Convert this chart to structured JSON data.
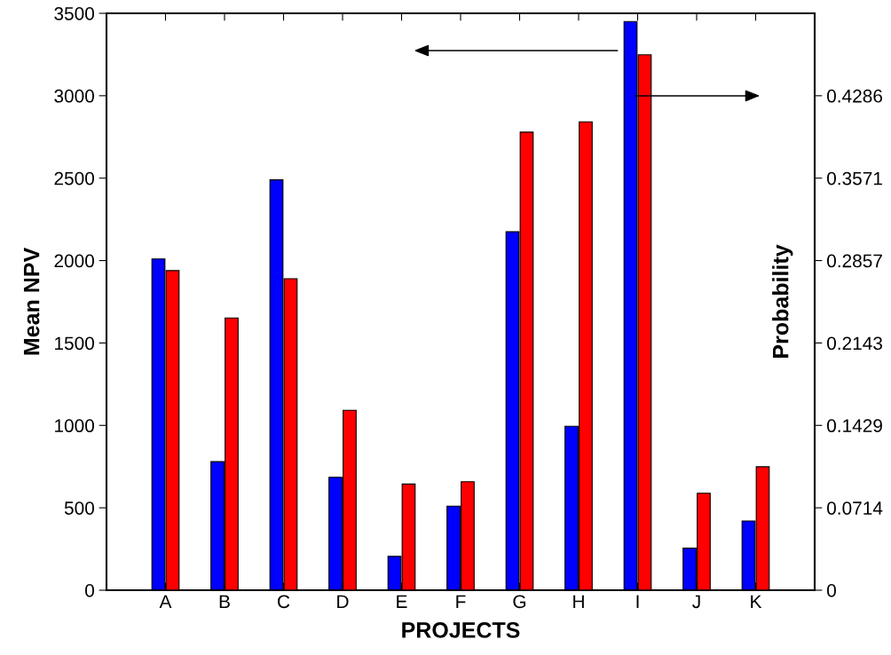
{
  "chart_data": {
    "type": "bar",
    "xlabel": "PROJECTS",
    "ylabel": "Mean NPV",
    "y2label": "Probability",
    "categories": [
      "A",
      "B",
      "C",
      "D",
      "E",
      "F",
      "G",
      "H",
      "I",
      "J",
      "K"
    ],
    "series": [
      {
        "color": "#0000ff",
        "values": [
          2010,
          780,
          2490,
          685,
          205,
          510,
          2175,
          995,
          3450,
          255,
          420
        ]
      },
      {
        "color": "#ff0000",
        "axis": "y2",
        "values": [
          0.277,
          0.236,
          0.27,
          0.156,
          0.092,
          0.094,
          0.397,
          0.406,
          0.464,
          0.084,
          0.107
        ]
      }
    ],
    "ylim": [
      0,
      3500
    ],
    "yticks": [
      0,
      500,
      1000,
      1500,
      2000,
      2500,
      3000,
      3500
    ],
    "y2lim": [
      0,
      0.5
    ],
    "y2ticks": [
      {
        "value": 0,
        "label": "0"
      },
      {
        "value": 0.07143,
        "label": "0.0714"
      },
      {
        "value": 0.14286,
        "label": "0.1429"
      },
      {
        "value": 0.21429,
        "label": "0.2143"
      },
      {
        "value": 0.28571,
        "label": "0.2857"
      },
      {
        "value": 0.35714,
        "label": "0.3571"
      },
      {
        "value": 0.42857,
        "label": "0.4286"
      }
    ],
    "grid": false
  }
}
